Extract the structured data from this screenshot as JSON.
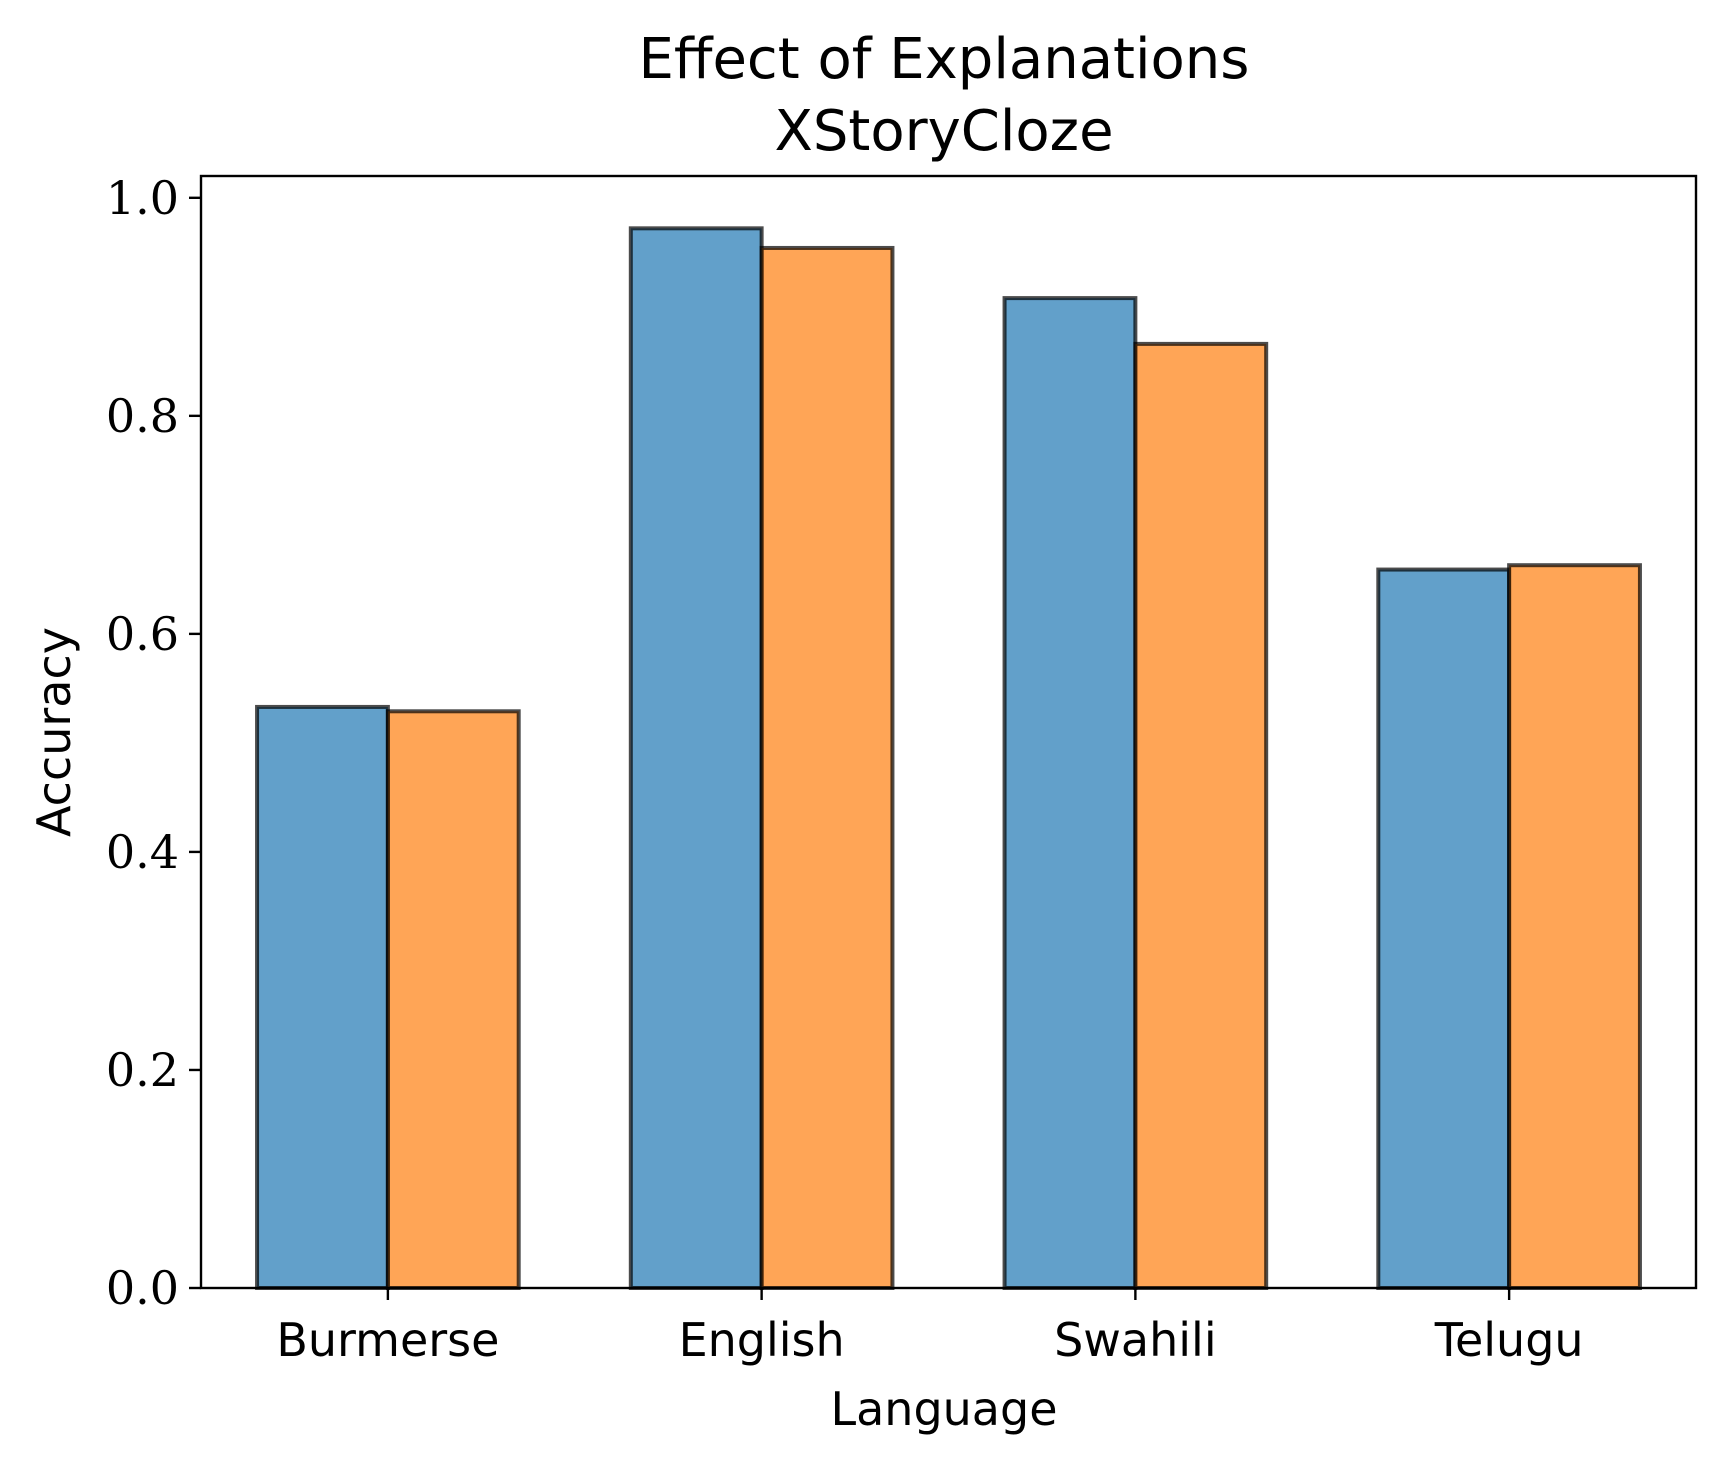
{
  "chart_data": {
    "type": "bar",
    "title": "Effect of Explanations",
    "subtitle": "XStoryCloze",
    "xlabel": "Language",
    "ylabel": "Accuracy",
    "categories": [
      "Burmerse",
      "English",
      "Swahili",
      "Telugu"
    ],
    "series": [
      {
        "values": [
          0.533,
          0.972,
          0.908,
          0.659
        ],
        "color": "#1f77b4"
      },
      {
        "values": [
          0.529,
          0.954,
          0.866,
          0.663
        ],
        "color": "#ff7f0e"
      }
    ],
    "ylim": [
      0,
      1.02
    ],
    "yticks": [
      0.0,
      0.2,
      0.4,
      0.6,
      0.8,
      1.0
    ],
    "ytick_labels": [
      "0.0",
      "0.2",
      "0.4",
      "0.6",
      "0.8",
      "1.0"
    ],
    "bar_alpha": 0.7,
    "edge_color": "#000000",
    "grid": false,
    "legend": "none"
  }
}
